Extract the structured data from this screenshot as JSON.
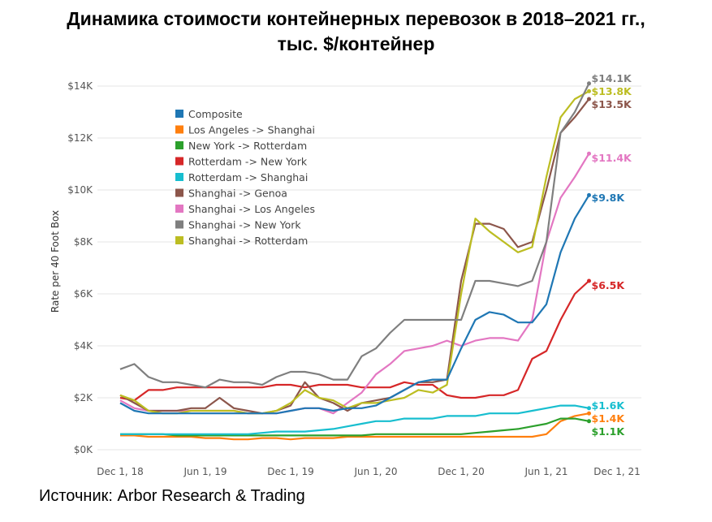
{
  "title_line1": "Динамика стоимости контейнерных перевозок в 2018–2021 гг.,",
  "title_line2": "тыс. $/контейнер",
  "source": "Источник: Arbor Research & Trading",
  "chart_data": {
    "type": "line",
    "ylabel": "Rate per 40 Foot Box",
    "xlabel": "",
    "ylim": [
      0,
      14
    ],
    "y_ticks": [
      0,
      2,
      4,
      6,
      8,
      10,
      12,
      14
    ],
    "y_tick_labels": [
      "$0K",
      "$2K",
      "$4K",
      "$6K",
      "$8K",
      "$10K",
      "$12K",
      "$14K"
    ],
    "x_start": "Dec 2018",
    "x_unit": "month",
    "x_ticks": [
      0,
      6,
      12,
      18,
      24,
      30,
      36
    ],
    "x_tick_labels": [
      "Dec 1, 18",
      "Jun 1, 19",
      "Dec 1, 19",
      "Jun 1, 20",
      "Dec 1, 20",
      "Jun 1, 21",
      "Dec 1, 21"
    ],
    "grid": true,
    "legend_position": "top-left",
    "series": [
      {
        "name": "Composite",
        "color": "#1f77b4",
        "end_label": "$9.8K",
        "values": [
          1.8,
          1.5,
          1.4,
          1.4,
          1.4,
          1.4,
          1.4,
          1.4,
          1.4,
          1.4,
          1.4,
          1.4,
          1.5,
          1.6,
          1.6,
          1.5,
          1.6,
          1.6,
          1.7,
          2.0,
          2.3,
          2.6,
          2.7,
          2.7,
          3.9,
          5.0,
          5.3,
          5.2,
          4.9,
          4.9,
          5.6,
          7.6,
          8.9,
          9.8
        ]
      },
      {
        "name": "Los Angeles -> Shanghai",
        "color": "#ff7f0e",
        "end_label": "$1.4K",
        "values": [
          0.55,
          0.55,
          0.5,
          0.5,
          0.5,
          0.5,
          0.45,
          0.45,
          0.4,
          0.4,
          0.45,
          0.45,
          0.4,
          0.45,
          0.45,
          0.45,
          0.5,
          0.5,
          0.5,
          0.5,
          0.5,
          0.5,
          0.5,
          0.5,
          0.5,
          0.5,
          0.5,
          0.5,
          0.5,
          0.5,
          0.6,
          1.1,
          1.3,
          1.4
        ]
      },
      {
        "name": "New York -> Rotterdam",
        "color": "#2ca02c",
        "end_label": "$1.1K",
        "values": [
          0.6,
          0.6,
          0.6,
          0.6,
          0.55,
          0.55,
          0.55,
          0.55,
          0.55,
          0.55,
          0.55,
          0.55,
          0.55,
          0.55,
          0.55,
          0.55,
          0.55,
          0.55,
          0.6,
          0.6,
          0.6,
          0.6,
          0.6,
          0.6,
          0.6,
          0.65,
          0.7,
          0.75,
          0.8,
          0.9,
          1.0,
          1.2,
          1.2,
          1.1
        ]
      },
      {
        "name": "Rotterdam -> New York",
        "color": "#d62728",
        "end_label": "$6.5K",
        "values": [
          2.0,
          1.9,
          2.3,
          2.3,
          2.4,
          2.4,
          2.4,
          2.4,
          2.4,
          2.4,
          2.4,
          2.5,
          2.5,
          2.4,
          2.5,
          2.5,
          2.5,
          2.4,
          2.4,
          2.4,
          2.6,
          2.5,
          2.5,
          2.1,
          2.0,
          2.0,
          2.1,
          2.1,
          2.3,
          3.5,
          3.8,
          5.0,
          6.0,
          6.5
        ]
      },
      {
        "name": "Rotterdam -> Shanghai",
        "color": "#17becf",
        "end_label": "$1.6K",
        "values": [
          0.6,
          0.6,
          0.6,
          0.6,
          0.6,
          0.6,
          0.6,
          0.6,
          0.6,
          0.6,
          0.65,
          0.7,
          0.7,
          0.7,
          0.75,
          0.8,
          0.9,
          1.0,
          1.1,
          1.1,
          1.2,
          1.2,
          1.2,
          1.3,
          1.3,
          1.3,
          1.4,
          1.4,
          1.4,
          1.5,
          1.6,
          1.7,
          1.7,
          1.6
        ]
      },
      {
        "name": "Shanghai -> Genoa",
        "color": "#8c564b",
        "end_label": "$13.5K",
        "values": [
          2.1,
          1.8,
          1.5,
          1.5,
          1.5,
          1.6,
          1.6,
          2.0,
          1.6,
          1.5,
          1.4,
          1.5,
          1.7,
          2.6,
          2.0,
          1.8,
          1.5,
          1.8,
          1.9,
          2.0,
          2.3,
          2.6,
          2.6,
          2.7,
          6.5,
          8.7,
          8.7,
          8.5,
          7.8,
          8.0,
          10.0,
          12.2,
          12.8,
          13.5
        ]
      },
      {
        "name": "Shanghai -> Los Angeles",
        "color": "#e377c2",
        "end_label": "$11.4K",
        "values": [
          1.9,
          1.6,
          1.5,
          1.5,
          1.5,
          1.5,
          1.5,
          1.5,
          1.5,
          1.4,
          1.4,
          1.4,
          1.5,
          1.6,
          1.6,
          1.4,
          1.8,
          2.2,
          2.9,
          3.3,
          3.8,
          3.9,
          4.0,
          4.2,
          4.0,
          4.2,
          4.3,
          4.3,
          4.2,
          5.0,
          8.0,
          9.7,
          10.5,
          11.4
        ]
      },
      {
        "name": "Shanghai -> New York",
        "color": "#7f7f7f",
        "end_label": "$14.1K",
        "values": [
          3.1,
          3.3,
          2.8,
          2.6,
          2.6,
          2.5,
          2.4,
          2.7,
          2.6,
          2.6,
          2.5,
          2.8,
          3.0,
          3.0,
          2.9,
          2.7,
          2.7,
          3.6,
          3.9,
          4.5,
          5.0,
          5.0,
          5.0,
          5.0,
          5.0,
          6.5,
          6.5,
          6.4,
          6.3,
          6.5,
          8.0,
          12.2,
          13.0,
          14.1
        ]
      },
      {
        "name": "Shanghai -> Rotterdam",
        "color": "#bcbd22",
        "end_label": "$13.8K",
        "values": [
          2.1,
          1.9,
          1.5,
          1.4,
          1.4,
          1.5,
          1.5,
          1.5,
          1.5,
          1.4,
          1.4,
          1.5,
          1.8,
          2.3,
          2.0,
          1.9,
          1.6,
          1.8,
          1.8,
          1.9,
          2.0,
          2.3,
          2.2,
          2.5,
          6.0,
          8.9,
          8.4,
          8.0,
          7.6,
          7.8,
          10.5,
          12.8,
          13.5,
          13.8
        ]
      }
    ]
  }
}
